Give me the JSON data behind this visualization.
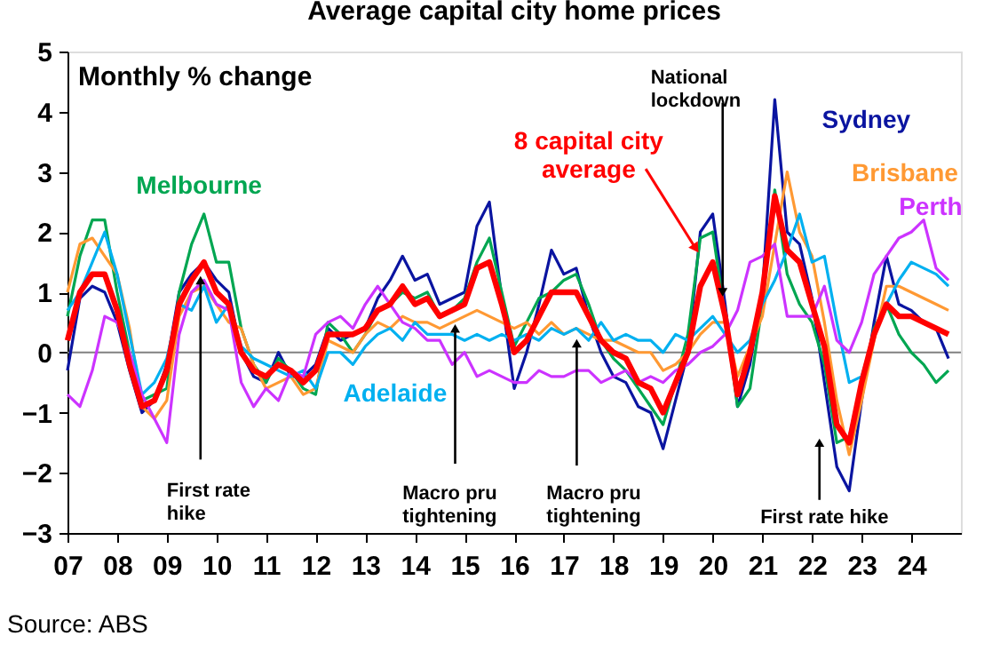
{
  "chart_data": {
    "type": "line",
    "title": "Average capital city home prices",
    "ylabel": "Monthly % change",
    "x": [
      2007.0,
      2007.25,
      2007.5,
      2007.75,
      2008.0,
      2008.25,
      2008.5,
      2008.75,
      2009.0,
      2009.25,
      2009.5,
      2009.75,
      2010.0,
      2010.25,
      2010.5,
      2010.75,
      2011.0,
      2011.25,
      2011.5,
      2011.75,
      2012.0,
      2012.25,
      2012.5,
      2012.75,
      2013.0,
      2013.25,
      2013.5,
      2013.75,
      2014.0,
      2014.25,
      2014.5,
      2014.75,
      2015.0,
      2015.25,
      2015.5,
      2015.75,
      2016.0,
      2016.25,
      2016.5,
      2016.75,
      2017.0,
      2017.25,
      2017.5,
      2017.75,
      2018.0,
      2018.25,
      2018.5,
      2018.75,
      2019.0,
      2019.25,
      2019.5,
      2019.75,
      2020.0,
      2020.25,
      2020.5,
      2020.75,
      2021.0,
      2021.25,
      2021.5,
      2021.75,
      2022.0,
      2022.25,
      2022.5,
      2022.75,
      2023.0,
      2023.25,
      2023.5,
      2023.75,
      2024.0,
      2024.25,
      2024.5,
      2024.75
    ],
    "series": [
      {
        "name": "Sydney",
        "color": "#0a14a0",
        "values": [
          -0.3,
          0.9,
          1.1,
          1.0,
          0.5,
          -0.3,
          -1.0,
          -0.8,
          -0.2,
          1.0,
          1.3,
          1.5,
          1.2,
          1.0,
          0.0,
          -0.4,
          -0.5,
          0.0,
          -0.4,
          -0.4,
          -0.2,
          0.4,
          0.2,
          0.3,
          0.4,
          0.9,
          1.2,
          1.6,
          1.2,
          1.3,
          0.8,
          0.9,
          1.0,
          2.1,
          2.5,
          0.9,
          -0.6,
          0.0,
          0.8,
          1.7,
          1.3,
          1.4,
          0.6,
          0.0,
          -0.4,
          -0.5,
          -0.9,
          -1.0,
          -1.6,
          -0.8,
          0.0,
          2.0,
          2.3,
          0.8,
          -0.9,
          -0.2,
          1.0,
          4.2,
          2.0,
          1.8,
          0.9,
          -0.5,
          -1.9,
          -2.3,
          -0.8,
          0.5,
          1.6,
          0.8,
          0.7,
          0.5,
          0.4,
          -0.1
        ]
      },
      {
        "name": "Melbourne",
        "color": "#00a651",
        "values": [
          0.6,
          1.6,
          2.2,
          2.2,
          1.0,
          0.0,
          -0.8,
          -0.7,
          -0.6,
          1.0,
          1.8,
          2.3,
          1.5,
          1.5,
          0.4,
          -0.2,
          -0.5,
          -0.1,
          -0.3,
          -0.6,
          -0.7,
          0.5,
          0.3,
          0.0,
          0.3,
          0.7,
          0.8,
          1.0,
          0.9,
          1.0,
          0.6,
          0.7,
          0.9,
          1.5,
          1.9,
          1.0,
          0.1,
          0.5,
          0.9,
          1.0,
          1.2,
          1.3,
          0.8,
          0.2,
          -0.1,
          -0.3,
          -0.6,
          -0.9,
          -1.2,
          -0.5,
          0.3,
          1.9,
          2.0,
          0.6,
          -0.9,
          -0.6,
          0.8,
          2.7,
          1.3,
          0.8,
          0.5,
          -0.2,
          -1.5,
          -1.4,
          -0.5,
          0.4,
          0.8,
          0.3,
          0.0,
          -0.2,
          -0.5,
          -0.3
        ]
      },
      {
        "name": "Brisbane",
        "color": "#ff9933",
        "values": [
          1.0,
          1.8,
          1.9,
          1.6,
          1.3,
          0.4,
          -0.9,
          -1.1,
          -0.8,
          0.6,
          1.0,
          1.1,
          0.8,
          0.5,
          0.4,
          -0.2,
          -0.6,
          -0.5,
          -0.4,
          -0.7,
          -0.6,
          0.2,
          0.1,
          0.0,
          0.3,
          0.5,
          0.4,
          0.6,
          0.5,
          0.5,
          0.4,
          0.5,
          0.6,
          0.7,
          0.6,
          0.5,
          0.4,
          0.5,
          0.3,
          0.5,
          0.3,
          0.4,
          0.3,
          0.2,
          0.2,
          0.1,
          0.0,
          0.0,
          -0.3,
          -0.2,
          0.0,
          0.3,
          0.5,
          0.5,
          -0.4,
          0.1,
          0.6,
          1.8,
          3.0,
          2.0,
          1.6,
          0.5,
          -0.8,
          -1.7,
          -0.8,
          0.2,
          1.1,
          1.1,
          1.0,
          0.9,
          0.8,
          0.7
        ]
      },
      {
        "name": "Adelaide",
        "color": "#00b0f0",
        "values": [
          0.7,
          1.0,
          1.5,
          2.0,
          1.3,
          0.3,
          -0.7,
          -0.5,
          -0.1,
          0.8,
          0.7,
          1.1,
          0.5,
          0.8,
          0.1,
          -0.1,
          -0.2,
          -0.3,
          -0.4,
          -0.3,
          -0.6,
          0.0,
          0.0,
          -0.2,
          0.1,
          0.3,
          0.4,
          0.2,
          0.5,
          0.3,
          0.3,
          0.3,
          0.2,
          0.3,
          0.2,
          0.3,
          0.2,
          0.3,
          0.2,
          0.4,
          0.3,
          0.4,
          0.2,
          0.5,
          0.2,
          0.3,
          0.2,
          0.2,
          0.0,
          0.3,
          0.2,
          0.4,
          0.6,
          0.3,
          0.0,
          0.2,
          0.8,
          1.2,
          1.7,
          2.3,
          1.5,
          1.6,
          0.5,
          -0.5,
          -0.4,
          0.3,
          0.8,
          1.2,
          1.5,
          1.4,
          1.3,
          1.1
        ]
      },
      {
        "name": "Perth",
        "color": "#cc33ff",
        "values": [
          -0.7,
          -0.9,
          -0.3,
          0.6,
          0.5,
          0.0,
          -0.7,
          -1.1,
          -1.5,
          0.3,
          1.0,
          1.2,
          0.8,
          0.7,
          -0.5,
          -0.9,
          -0.6,
          -0.8,
          -0.3,
          -0.4,
          0.3,
          0.5,
          0.6,
          0.4,
          0.8,
          1.1,
          0.8,
          0.5,
          0.4,
          0.2,
          0.2,
          -0.2,
          0.0,
          -0.4,
          -0.3,
          -0.4,
          -0.5,
          -0.5,
          -0.3,
          -0.4,
          -0.4,
          -0.3,
          -0.3,
          -0.5,
          -0.4,
          -0.3,
          -0.5,
          -0.4,
          -0.5,
          -0.3,
          -0.2,
          0.0,
          0.1,
          0.3,
          0.7,
          1.5,
          1.6,
          1.8,
          0.6,
          0.6,
          0.6,
          1.1,
          0.2,
          0.0,
          0.5,
          1.3,
          1.6,
          1.9,
          2.0,
          2.2,
          1.4,
          1.2
        ]
      },
      {
        "name": "8 capital city average",
        "color": "#ff0000",
        "values": [
          0.2,
          1.0,
          1.3,
          1.3,
          0.7,
          -0.2,
          -0.9,
          -0.8,
          -0.3,
          0.8,
          1.2,
          1.5,
          1.0,
          0.8,
          0.0,
          -0.3,
          -0.4,
          -0.2,
          -0.3,
          -0.5,
          -0.3,
          0.3,
          0.3,
          0.3,
          0.4,
          0.7,
          0.8,
          1.1,
          0.8,
          0.9,
          0.6,
          0.7,
          0.8,
          1.4,
          1.5,
          0.8,
          0.0,
          0.2,
          0.6,
          1.0,
          1.0,
          1.0,
          0.6,
          0.2,
          0.0,
          -0.1,
          -0.5,
          -0.6,
          -1.0,
          -0.5,
          0.0,
          1.1,
          1.5,
          0.6,
          -0.7,
          0.0,
          1.0,
          2.6,
          1.7,
          1.5,
          0.8,
          0.1,
          -1.2,
          -1.5,
          -0.5,
          0.3,
          0.8,
          0.6,
          0.6,
          0.5,
          0.4,
          0.3
        ]
      }
    ],
    "xlim": [
      2007,
      2025
    ],
    "xticks": [
      {
        "value": 2007,
        "label": "07"
      },
      {
        "value": 2008,
        "label": "08"
      },
      {
        "value": 2009,
        "label": "09"
      },
      {
        "value": 2010,
        "label": "10"
      },
      {
        "value": 2011,
        "label": "11"
      },
      {
        "value": 2012,
        "label": "12"
      },
      {
        "value": 2013,
        "label": "13"
      },
      {
        "value": 2014,
        "label": "14"
      },
      {
        "value": 2015,
        "label": "15"
      },
      {
        "value": 2016,
        "label": "16"
      },
      {
        "value": 2017,
        "label": "17"
      },
      {
        "value": 2018,
        "label": "18"
      },
      {
        "value": 2019,
        "label": "19"
      },
      {
        "value": 2020,
        "label": "20"
      },
      {
        "value": 2021,
        "label": "21"
      },
      {
        "value": 2022,
        "label": "22"
      },
      {
        "value": 2023,
        "label": "23"
      },
      {
        "value": 2024,
        "label": "24"
      }
    ],
    "ylim": [
      -3,
      5
    ],
    "yticks": [
      -3,
      -2,
      -1,
      0,
      1,
      2,
      3,
      4,
      5
    ],
    "ref_lines": [
      {
        "axis": "y",
        "value": 0,
        "color": "#808080"
      }
    ],
    "annotations": [
      {
        "text": "First rate\nhike",
        "x": 2009.68,
        "y": 1.2
      },
      {
        "text": "Macro pru\ntightening",
        "x": 2014.81,
        "y": 0.4
      },
      {
        "text": "Macro pru\ntightening",
        "x": 2017.26,
        "y": 0.15
      },
      {
        "text": "National\nlockdown",
        "x": 2020.2,
        "y": 1.0
      },
      {
        "text": "First rate hike",
        "x": 2022.15,
        "y": -1.5
      },
      "Source: ABS"
    ],
    "grid": false,
    "marker": "none",
    "line_style": "solid"
  }
}
